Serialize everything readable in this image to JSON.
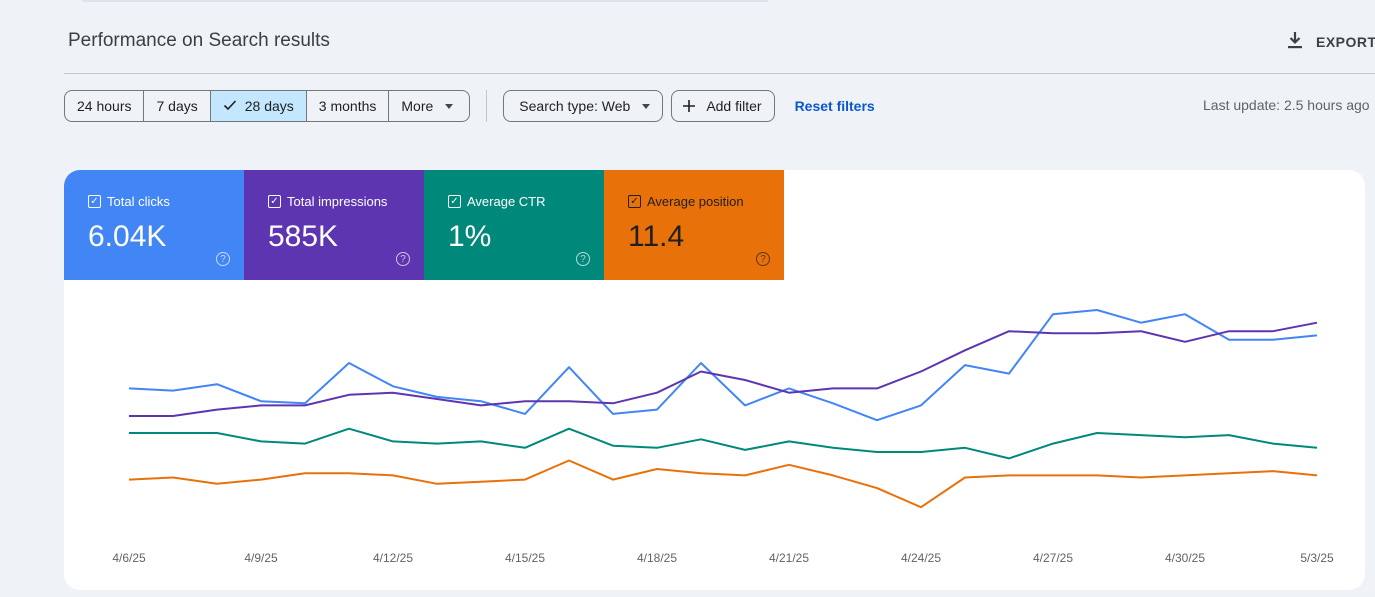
{
  "header": {
    "title": "Performance on Search results",
    "export_label": "EXPORT"
  },
  "filters": {
    "ranges": [
      {
        "label": "24 hours",
        "selected": false
      },
      {
        "label": "7 days",
        "selected": false
      },
      {
        "label": "28 days",
        "selected": true
      },
      {
        "label": "3 months",
        "selected": false
      },
      {
        "label": "More",
        "selected": false
      }
    ],
    "search_type": "Search type: Web",
    "add_filter": "Add filter",
    "reset": "Reset filters",
    "last_update": "Last update: 2.5 hours ago"
  },
  "metrics": [
    {
      "label": "Total clicks",
      "value": "6.04K",
      "color": "#4285f4",
      "checked": true
    },
    {
      "label": "Total impressions",
      "value": "585K",
      "color": "#5e35b1",
      "checked": true
    },
    {
      "label": "Average CTR",
      "value": "1%",
      "color": "#00897b",
      "checked": true
    },
    {
      "label": "Average position",
      "value": "11.4",
      "color": "#e8710a",
      "checked": true
    }
  ],
  "icons": {
    "export": "download-icon",
    "check": "check-icon",
    "add": "plus-icon",
    "help": "help-circle-icon",
    "dropdown": "chevron-down-icon"
  },
  "chart_data": {
    "type": "line",
    "grid": false,
    "x_tick_labels": [
      "4/6/25",
      "4/9/25",
      "4/12/25",
      "4/15/25",
      "4/18/25",
      "4/21/25",
      "4/24/25",
      "4/27/25",
      "4/30/25",
      "5/3/25"
    ],
    "x": [
      "4/6/25",
      "4/7/25",
      "4/8/25",
      "4/9/25",
      "4/10/25",
      "4/11/25",
      "4/12/25",
      "4/13/25",
      "4/14/25",
      "4/15/25",
      "4/16/25",
      "4/17/25",
      "4/18/25",
      "4/19/25",
      "4/20/25",
      "4/21/25",
      "4/22/25",
      "4/23/25",
      "4/24/25",
      "4/25/25",
      "4/26/25",
      "4/27/25",
      "4/28/25",
      "4/29/25",
      "4/30/25",
      "5/1/25",
      "5/2/25",
      "5/3/25"
    ],
    "scale": "relative (each series normalized 0-1 in its own plotted range)",
    "series": [
      {
        "name": "Total clicks",
        "color": "#4285f4",
        "values": [
          0.63,
          0.62,
          0.65,
          0.57,
          0.56,
          0.75,
          0.64,
          0.59,
          0.57,
          0.51,
          0.73,
          0.51,
          0.53,
          0.75,
          0.55,
          0.63,
          0.56,
          0.48,
          0.55,
          0.74,
          0.7,
          0.98,
          1.0,
          0.94,
          0.98,
          0.86,
          0.86,
          0.88
        ]
      },
      {
        "name": "Total impressions",
        "color": "#5e35b1",
        "values": [
          0.5,
          0.5,
          0.53,
          0.55,
          0.55,
          0.6,
          0.61,
          0.58,
          0.55,
          0.57,
          0.57,
          0.56,
          0.61,
          0.71,
          0.67,
          0.61,
          0.63,
          0.63,
          0.71,
          0.81,
          0.9,
          0.89,
          0.89,
          0.9,
          0.85,
          0.9,
          0.9,
          0.94
        ]
      },
      {
        "name": "Average CTR",
        "color": "#00897b",
        "values": [
          0.42,
          0.42,
          0.42,
          0.38,
          0.37,
          0.44,
          0.38,
          0.37,
          0.38,
          0.35,
          0.44,
          0.36,
          0.35,
          0.39,
          0.34,
          0.38,
          0.35,
          0.33,
          0.33,
          0.35,
          0.3,
          0.37,
          0.42,
          0.41,
          0.4,
          0.41,
          0.37,
          0.35
        ]
      },
      {
        "name": "Average position",
        "color": "#e8710a",
        "values": [
          0.2,
          0.21,
          0.18,
          0.2,
          0.23,
          0.23,
          0.22,
          0.18,
          0.19,
          0.2,
          0.29,
          0.2,
          0.25,
          0.23,
          0.22,
          0.27,
          0.22,
          0.16,
          0.07,
          0.21,
          0.22,
          0.22,
          0.22,
          0.21,
          0.22,
          0.23,
          0.24,
          0.22
        ]
      }
    ]
  }
}
